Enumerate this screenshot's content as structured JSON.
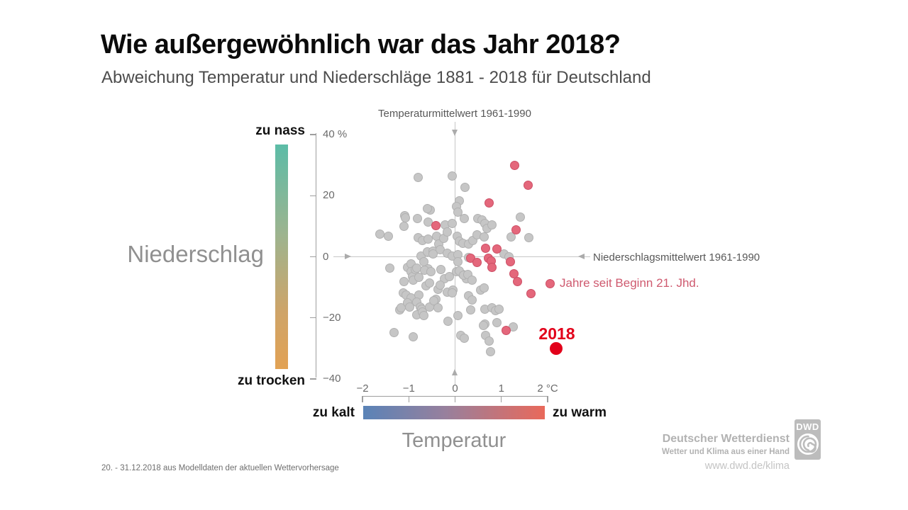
{
  "title": "Wie außergewöhnlich war das Jahr 2018?",
  "subtitle": "Abweichung Temperatur und Niederschläge 1881 - 2018 für Deutschland",
  "footer": {
    "note": "20. - 31.12.2018 aus Modelldaten der aktuellen Wettervorhersage"
  },
  "branding": {
    "org": "Deutscher Wetterdienst",
    "tagline": "Wetter und Klima aus einer Hand",
    "url": "www.dwd.de/klima",
    "logo_text": "DWD"
  },
  "chart_data": {
    "type": "scatter",
    "xlabel": "Temperatur",
    "ylabel": "Niederschlag",
    "xlim": [
      -2,
      2
    ],
    "ylim": [
      -40,
      40
    ],
    "x_axis_annotation": "Temperaturmittelwert 1961-1990",
    "y_axis_annotation": "Niederschlagsmittelwert 1961-1990",
    "x_ticks": [
      {
        "v": -2,
        "label": "−2"
      },
      {
        "v": -1,
        "label": "−1"
      },
      {
        "v": 0,
        "label": "0"
      },
      {
        "v": 1,
        "label": "1"
      },
      {
        "v": 2,
        "label": "2 °C"
      }
    ],
    "y_ticks": [
      {
        "v": 40,
        "label": "40 %"
      },
      {
        "v": 20,
        "label": "20"
      },
      {
        "v": 0,
        "label": "0"
      },
      {
        "v": -20,
        "label": "−20"
      },
      {
        "v": -40,
        "label": "−40"
      }
    ],
    "precip_scale": {
      "top_label": "zu nass",
      "bottom_label": "zu trocken",
      "stops": [
        [
          0,
          "#5cbca7"
        ],
        [
          40,
          "#9db48f"
        ],
        [
          75,
          "#cfa468"
        ],
        [
          100,
          "#e2a254"
        ]
      ]
    },
    "temp_scale": {
      "left_label": "zu kalt",
      "right_label": "zu warm",
      "stops": [
        [
          0,
          "#5a83b7"
        ],
        [
          45,
          "#97809d"
        ],
        [
          100,
          "#e9695b"
        ]
      ]
    },
    "series": [
      {
        "key": "years-1881-2000",
        "label": "",
        "color": "#c6c6c6",
        "stroke": "#b1b1b1",
        "points": [
          [
            -0.8,
            25.9
          ],
          [
            -0.06,
            26.4
          ],
          [
            0.21,
            22.7
          ],
          [
            0.09,
            18.3
          ],
          [
            -0.54,
            15.3
          ],
          [
            0.03,
            16.4
          ],
          [
            0.06,
            14.6
          ],
          [
            -0.6,
            15.7
          ],
          [
            -1.09,
            13.4
          ],
          [
            -1.07,
            12.7
          ],
          [
            -0.81,
            12.5
          ],
          [
            -0.58,
            11.3
          ],
          [
            -0.21,
            10.4
          ],
          [
            -0.06,
            10.9
          ],
          [
            0.2,
            12.5
          ],
          [
            0.49,
            12.5
          ],
          [
            0.58,
            12.0
          ],
          [
            0.64,
            10.9
          ],
          [
            0.69,
            9.2
          ],
          [
            0.8,
            10.4
          ],
          [
            1.41,
            12.9
          ],
          [
            1.21,
            6.5
          ],
          [
            1.59,
            6.2
          ],
          [
            -1.62,
            7.4
          ],
          [
            -1.44,
            6.7
          ],
          [
            -1.1,
            9.9
          ],
          [
            -0.8,
            6.2
          ],
          [
            -0.7,
            5.3
          ],
          [
            -0.58,
            5.8
          ],
          [
            -0.4,
            6.7
          ],
          [
            -0.35,
            4.2
          ],
          [
            -0.25,
            6.0
          ],
          [
            -0.17,
            8.1
          ],
          [
            0.05,
            6.7
          ],
          [
            0.09,
            5.1
          ],
          [
            0.17,
            4.4
          ],
          [
            0.29,
            4.2
          ],
          [
            0.38,
            5.3
          ],
          [
            0.48,
            7.2
          ],
          [
            0.63,
            6.5
          ],
          [
            -0.74,
            0.2
          ],
          [
            -0.6,
            1.6
          ],
          [
            -0.48,
            1.8
          ],
          [
            -0.32,
            2.3
          ],
          [
            -0.48,
            0.9
          ],
          [
            -0.17,
            1.2
          ],
          [
            -0.06,
            0.2
          ],
          [
            0.06,
            0.7
          ],
          [
            0.29,
            -0.2
          ],
          [
            1.06,
            0.9
          ],
          [
            1.16,
            0.0
          ],
          [
            -1.41,
            -3.7
          ],
          [
            -1.03,
            -3.5
          ],
          [
            -0.95,
            -2.3
          ],
          [
            -0.95,
            -4.9
          ],
          [
            -0.92,
            -6.5
          ],
          [
            -0.86,
            -4.2
          ],
          [
            -0.83,
            -3.7
          ],
          [
            -0.67,
            -1.6
          ],
          [
            -0.58,
            -3.9
          ],
          [
            -1.1,
            -8.1
          ],
          [
            -0.9,
            -7.6
          ],
          [
            -0.78,
            -6.7
          ],
          [
            -0.66,
            -4.4
          ],
          [
            -0.52,
            -4.9
          ],
          [
            -0.31,
            -4.2
          ],
          [
            -0.23,
            -7.2
          ],
          [
            -0.12,
            -6.5
          ],
          [
            0.03,
            -4.9
          ],
          [
            0.17,
            -5.8
          ],
          [
            0.25,
            -7.2
          ],
          [
            0.06,
            -1.6
          ],
          [
            0.09,
            -4.6
          ],
          [
            0.18,
            -6.0
          ],
          [
            0.28,
            -5.8
          ],
          [
            0.37,
            -7.6
          ],
          [
            -1.12,
            -11.8
          ],
          [
            -1.06,
            -12.5
          ],
          [
            -0.95,
            -13.4
          ],
          [
            -0.78,
            -12.5
          ],
          [
            -0.63,
            -9.5
          ],
          [
            -0.55,
            -8.6
          ],
          [
            -0.41,
            -13.9
          ],
          [
            -0.37,
            -10.6
          ],
          [
            -0.32,
            -9.2
          ],
          [
            -0.17,
            -11.6
          ],
          [
            -0.05,
            -10.9
          ],
          [
            0.29,
            -12.7
          ],
          [
            0.37,
            -14.1
          ],
          [
            0.55,
            -10.9
          ],
          [
            0.63,
            -10.2
          ],
          [
            -0.06,
            -11.8
          ],
          [
            -1.2,
            -17.3
          ],
          [
            -1.16,
            -16.6
          ],
          [
            -1.03,
            -15.0
          ],
          [
            -0.98,
            -16.4
          ],
          [
            -0.83,
            -14.8
          ],
          [
            -0.75,
            -16.4
          ],
          [
            -0.72,
            -17.1
          ],
          [
            -0.55,
            -16.4
          ],
          [
            -0.46,
            -14.3
          ],
          [
            -0.37,
            -16.6
          ],
          [
            -0.83,
            -19.0
          ],
          [
            -0.7,
            -18.0
          ],
          [
            -0.67,
            -19.2
          ],
          [
            0.34,
            -17.3
          ],
          [
            0.64,
            -17.1
          ],
          [
            0.8,
            -16.6
          ],
          [
            0.87,
            -17.6
          ],
          [
            0.95,
            -17.1
          ],
          [
            -0.15,
            -21.0
          ],
          [
            0.06,
            -19.2
          ],
          [
            0.64,
            -22.0
          ],
          [
            0.9,
            -21.5
          ],
          [
            -1.32,
            -24.7
          ],
          [
            -0.9,
            -26.1
          ],
          [
            0.12,
            -25.7
          ],
          [
            0.2,
            -26.6
          ],
          [
            0.61,
            -22.4
          ],
          [
            0.66,
            -25.7
          ],
          [
            0.74,
            -27.7
          ],
          [
            0.77,
            -31.0
          ],
          [
            1.26,
            -22.9
          ]
        ]
      },
      {
        "key": "years-21st-century",
        "label": "Jahre seit Beginn 21. Jhd.",
        "color": "#e4677b",
        "stroke": "#cd4f66",
        "points": [
          [
            1.29,
            29.8
          ],
          [
            1.58,
            23.4
          ],
          [
            0.74,
            17.6
          ],
          [
            -0.41,
            10.2
          ],
          [
            1.32,
            8.8
          ],
          [
            0.66,
            2.8
          ],
          [
            0.9,
            2.5
          ],
          [
            0.34,
            -0.5
          ],
          [
            0.48,
            -1.8
          ],
          [
            0.72,
            -0.5
          ],
          [
            0.78,
            -1.4
          ],
          [
            1.2,
            -1.6
          ],
          [
            0.8,
            -3.5
          ],
          [
            1.27,
            -5.5
          ],
          [
            1.35,
            -8.1
          ],
          [
            1.64,
            -12.0
          ],
          [
            1.1,
            -24.0
          ]
        ]
      },
      {
        "key": "year-2018",
        "label": "2018",
        "color": "#e2001a",
        "stroke": "#e2001a",
        "points": [
          [
            2.18,
            -30.0
          ]
        ]
      }
    ]
  }
}
